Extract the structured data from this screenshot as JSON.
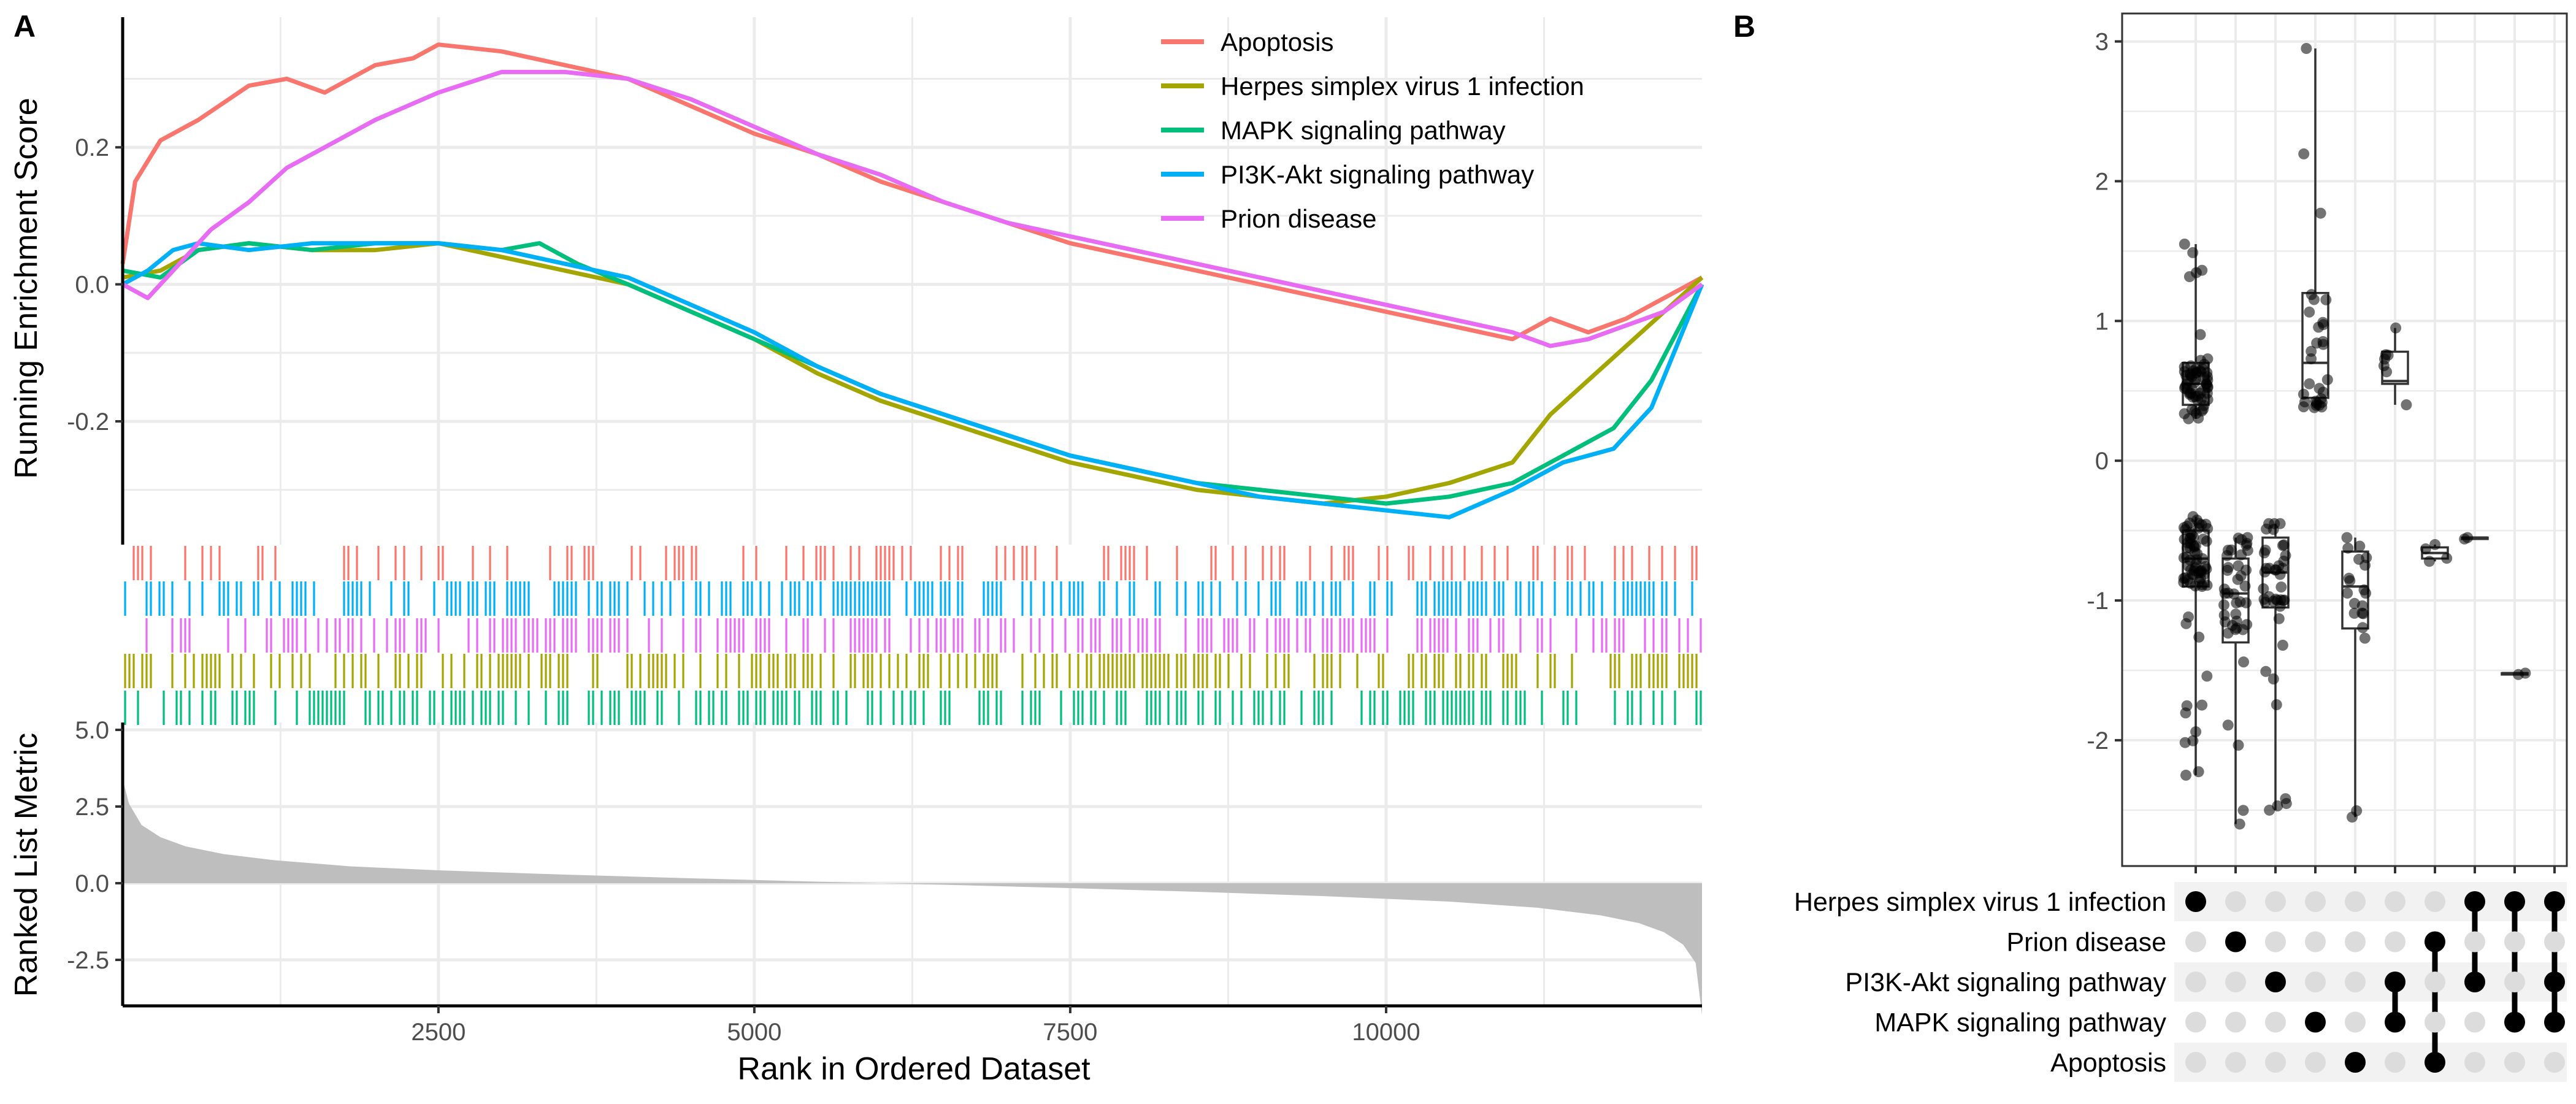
{
  "panel_labels": {
    "a": "A",
    "b": "B"
  },
  "colors": {
    "Apoptosis": "#F8766D",
    "Herpes simplex virus 1 infection": "#A3A500",
    "MAPK signaling pathway": "#00BF7D",
    "PI3K-Akt signaling pathway": "#00B0F6",
    "Prion disease": "#E76BF3",
    "metric_fill": "#bebebe",
    "grid": "#ebebeb",
    "dot_active": "#000000",
    "dot_inactive": "#dcdcdc"
  },
  "chart_data": [
    {
      "type": "line",
      "panel": "A",
      "ylabel": "Running Enrichment Score",
      "xlim": [
        1,
        12500
      ],
      "ylim": [
        -0.38,
        0.39
      ],
      "yticks": [
        "0.2",
        "0.0",
        "-0.2"
      ],
      "ytick_values": [
        0.2,
        0.0,
        -0.2
      ],
      "grid": true,
      "legend_position": "top-right",
      "series": [
        {
          "name": "Apoptosis",
          "x": [
            1,
            100,
            300,
            600,
            1000,
            1300,
            1600,
            2000,
            2300,
            2500,
            3000,
            3500,
            4000,
            4500,
            5000,
            5500,
            6000,
            6500,
            7000,
            7500,
            8000,
            8500,
            9000,
            9500,
            10000,
            10500,
            11000,
            11300,
            11600,
            11900,
            12100,
            12500
          ],
          "y": [
            0.03,
            0.15,
            0.21,
            0.24,
            0.29,
            0.3,
            0.28,
            0.32,
            0.33,
            0.35,
            0.34,
            0.32,
            0.3,
            0.26,
            0.22,
            0.19,
            0.15,
            0.12,
            0.09,
            0.06,
            0.04,
            0.02,
            0.0,
            -0.02,
            -0.04,
            -0.06,
            -0.08,
            -0.05,
            -0.07,
            -0.05,
            -0.03,
            0.01
          ]
        },
        {
          "name": "Herpes simplex virus 1 infection",
          "x": [
            1,
            300,
            600,
            1000,
            1500,
            2000,
            2500,
            3000,
            3500,
            4000,
            4500,
            5000,
            5500,
            6000,
            6500,
            7000,
            7500,
            8000,
            8500,
            9000,
            9500,
            10000,
            10500,
            11000,
            11300,
            11600,
            11900,
            12200,
            12500
          ],
          "y": [
            0.01,
            0.02,
            0.05,
            0.06,
            0.05,
            0.05,
            0.06,
            0.04,
            0.02,
            0.0,
            -0.04,
            -0.08,
            -0.13,
            -0.17,
            -0.2,
            -0.23,
            -0.26,
            -0.28,
            -0.3,
            -0.31,
            -0.32,
            -0.31,
            -0.29,
            -0.26,
            -0.19,
            -0.14,
            -0.09,
            -0.04,
            0.01
          ]
        },
        {
          "name": "MAPK signaling pathway",
          "x": [
            1,
            300,
            600,
            1000,
            1500,
            2000,
            2500,
            3000,
            3300,
            3600,
            4000,
            4500,
            5000,
            5500,
            6000,
            6500,
            7000,
            7500,
            8000,
            8500,
            9000,
            9500,
            10000,
            10500,
            11000,
            11400,
            11800,
            12100,
            12500
          ],
          "y": [
            0.02,
            0.01,
            0.05,
            0.06,
            0.05,
            0.06,
            0.06,
            0.05,
            0.06,
            0.03,
            0.0,
            -0.04,
            -0.08,
            -0.12,
            -0.16,
            -0.19,
            -0.22,
            -0.25,
            -0.27,
            -0.29,
            -0.3,
            -0.31,
            -0.32,
            -0.31,
            -0.29,
            -0.25,
            -0.21,
            -0.14,
            0.0
          ]
        },
        {
          "name": "PI3K-Akt signaling pathway",
          "x": [
            1,
            200,
            400,
            600,
            1000,
            1500,
            2000,
            2500,
            3000,
            3500,
            4000,
            4500,
            5000,
            5500,
            6000,
            6500,
            7000,
            7500,
            8000,
            8500,
            9000,
            9500,
            10000,
            10500,
            11000,
            11400,
            11800,
            12100,
            12500
          ],
          "y": [
            0.0,
            0.02,
            0.05,
            0.06,
            0.05,
            0.06,
            0.06,
            0.06,
            0.05,
            0.03,
            0.01,
            -0.03,
            -0.07,
            -0.12,
            -0.16,
            -0.19,
            -0.22,
            -0.25,
            -0.27,
            -0.29,
            -0.31,
            -0.32,
            -0.33,
            -0.34,
            -0.3,
            -0.26,
            -0.24,
            -0.18,
            0.0
          ]
        },
        {
          "name": "Prion disease",
          "x": [
            1,
            200,
            400,
            700,
            1000,
            1300,
            1600,
            2000,
            2500,
            3000,
            3500,
            4000,
            4500,
            5000,
            5500,
            6000,
            6500,
            7000,
            7500,
            8000,
            8500,
            9000,
            9500,
            10000,
            10500,
            11000,
            11300,
            11600,
            11900,
            12200,
            12500
          ],
          "y": [
            0.0,
            -0.02,
            0.02,
            0.08,
            0.12,
            0.17,
            0.2,
            0.24,
            0.28,
            0.31,
            0.31,
            0.3,
            0.27,
            0.23,
            0.19,
            0.16,
            0.12,
            0.09,
            0.07,
            0.05,
            0.03,
            0.01,
            -0.01,
            -0.03,
            -0.05,
            -0.07,
            -0.09,
            -0.08,
            -0.06,
            -0.04,
            0.0
          ]
        }
      ],
      "rug_rows": [
        "Apoptosis",
        "PI3K-Akt signaling pathway",
        "Prion disease",
        "Herpes simplex virus 1 infection",
        "MAPK signaling pathway"
      ]
    },
    {
      "type": "area",
      "panel": "A",
      "xlabel": "Rank in Ordered Dataset",
      "ylabel": "Ranked List Metric",
      "xlim": [
        1,
        12500
      ],
      "ylim": [
        -4.0,
        5.5
      ],
      "xticks": [
        "2500",
        "5000",
        "7500",
        "10000"
      ],
      "xtick_values": [
        2500,
        5000,
        7500,
        10000
      ],
      "yticks": [
        "5.0",
        "2.5",
        "0.0",
        "-2.5"
      ],
      "ytick_values": [
        5.0,
        2.5,
        0.0,
        -2.5
      ],
      "x": [
        1,
        50,
        150,
        300,
        500,
        800,
        1200,
        1800,
        2500,
        3500,
        4500,
        5500,
        6000,
        6500,
        7500,
        8500,
        9500,
        10500,
        11200,
        11700,
        12000,
        12200,
        12350,
        12450,
        12500
      ],
      "y": [
        3.4,
        2.6,
        1.9,
        1.5,
        1.2,
        0.95,
        0.75,
        0.55,
        0.42,
        0.28,
        0.16,
        0.05,
        0.0,
        -0.05,
        -0.16,
        -0.28,
        -0.42,
        -0.6,
        -0.8,
        -1.05,
        -1.3,
        -1.6,
        -2.0,
        -2.6,
        -4.3
      ]
    },
    {
      "type": "scatter",
      "panel": "B",
      "subtype": "upset-boxplot",
      "ylim": [
        -2.9,
        3.2
      ],
      "yticks": [
        "3",
        "2",
        "1",
        "0",
        "-1",
        "-2"
      ],
      "ytick_values": [
        3,
        2,
        1,
        0,
        -1,
        -2
      ],
      "set_rows": [
        "Herpes simplex virus 1 infection",
        "Prion disease",
        "PI3K-Akt signaling pathway",
        "MAPK signaling pathway",
        "Apoptosis"
      ],
      "intersections": [
        {
          "sets": [
            "Herpes simplex virus 1 infection"
          ],
          "neg": {
            "min": -2.25,
            "q1": -0.9,
            "median": -0.7,
            "q3": -0.5,
            "max": -0.4,
            "n": 70
          },
          "pos": {
            "min": 0.3,
            "q1": 0.4,
            "median": 0.55,
            "q3": 0.7,
            "max": 1.55,
            "n": 60
          }
        },
        {
          "sets": [
            "Prion disease"
          ],
          "neg": {
            "min": -2.6,
            "q1": -1.3,
            "median": -0.95,
            "q3": -0.7,
            "max": -0.55,
            "n": 40
          }
        },
        {
          "sets": [
            "PI3K-Akt signaling pathway"
          ],
          "neg": {
            "min": -2.5,
            "q1": -1.05,
            "median": -0.8,
            "q3": -0.55,
            "max": -0.45,
            "n": 40
          }
        },
        {
          "sets": [
            "MAPK signaling pathway"
          ],
          "pos": {
            "min": 0.38,
            "q1": 0.45,
            "median": 0.7,
            "q3": 1.2,
            "max": 2.95,
            "n": 30
          }
        },
        {
          "sets": [
            "Apoptosis"
          ],
          "neg": {
            "min": -2.55,
            "q1": -1.2,
            "median": -0.9,
            "q3": -0.65,
            "max": -0.55,
            "n": 20
          }
        },
        {
          "sets": [
            "PI3K-Akt signaling pathway",
            "MAPK signaling pathway"
          ],
          "pos": {
            "min": 0.4,
            "q1": 0.55,
            "median": 0.57,
            "q3": 0.78,
            "max": 0.95,
            "n": 7
          }
        },
        {
          "sets": [
            "Prion disease",
            "Apoptosis"
          ],
          "neg": {
            "min": -0.72,
            "q1": -0.7,
            "median": -0.66,
            "q3": -0.62,
            "max": -0.6,
            "n": 4
          }
        },
        {
          "sets": [
            "Herpes simplex virus 1 infection",
            "PI3K-Akt signaling pathway"
          ],
          "neg": {
            "min": -0.56,
            "q1": -0.56,
            "median": -0.55,
            "q3": -0.55,
            "max": -0.55,
            "n": 2
          }
        },
        {
          "sets": [
            "Herpes simplex virus 1 infection",
            "MAPK signaling pathway"
          ],
          "neg": {
            "min": -1.53,
            "q1": -1.53,
            "median": -1.52,
            "q3": -1.52,
            "max": -1.52,
            "n": 2
          }
        },
        {
          "sets": [
            "Herpes simplex virus 1 infection",
            "PI3K-Akt signaling pathway",
            "MAPK signaling pathway"
          ]
        }
      ]
    }
  ]
}
